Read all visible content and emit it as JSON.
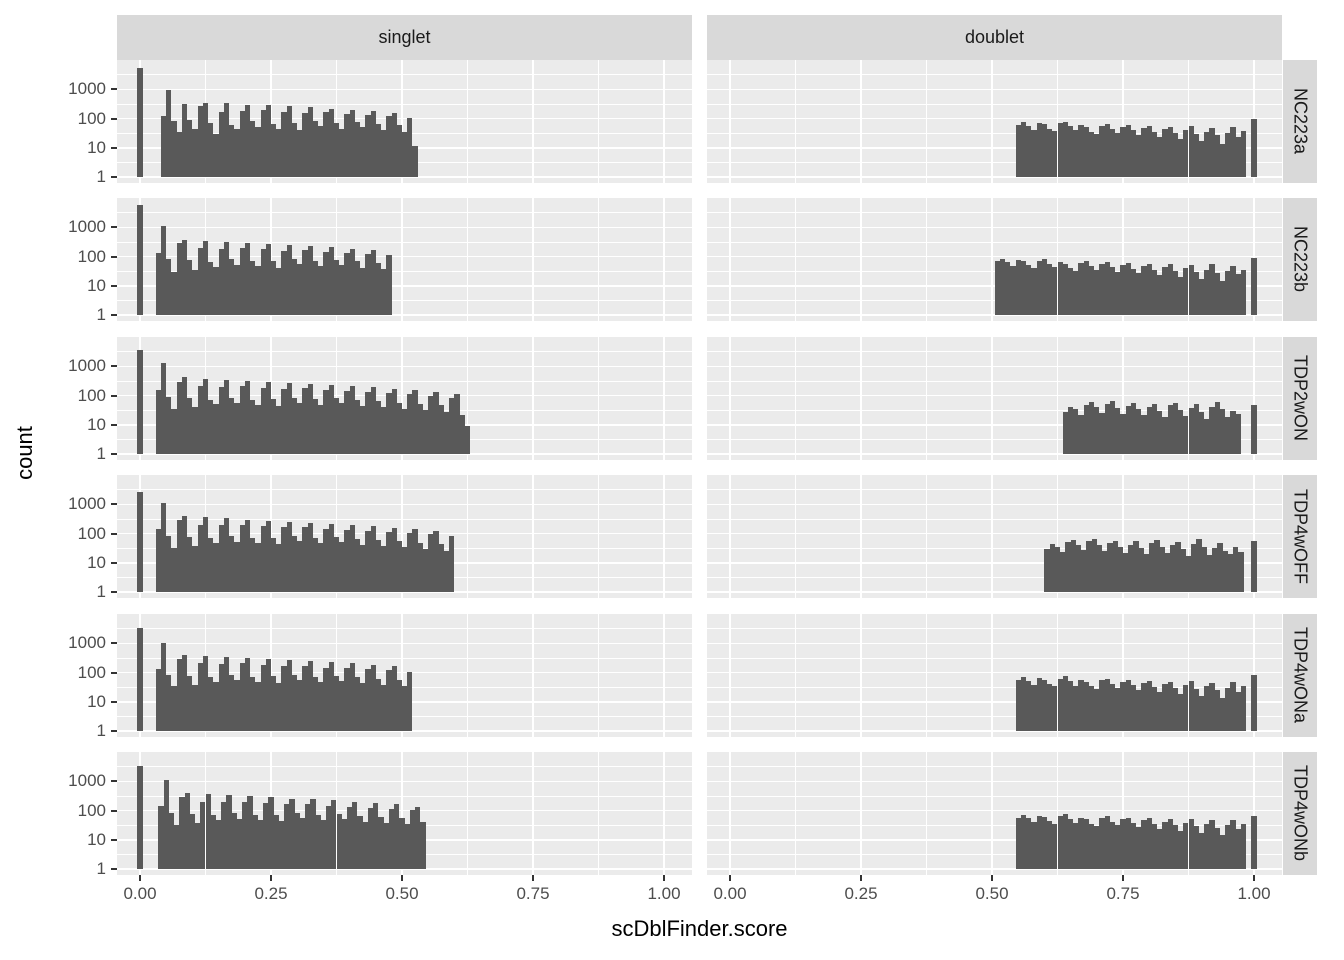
{
  "chart_data": {
    "type": "bar",
    "subtype": "faceted-histogram-log-y",
    "title": "",
    "xlabel": "scDblFinder.score",
    "ylabel": "count",
    "facet_cols": [
      "singlet",
      "doublet"
    ],
    "facet_rows": [
      "NC223a",
      "NC223b",
      "TDP2wON",
      "TDP4wOFF",
      "TDP4wONa",
      "TDP4wONb"
    ],
    "x_ticks": {
      "values": [
        0,
        0.25,
        0.5,
        0.75,
        1.0
      ],
      "labels": [
        "0.00",
        "0.25",
        "0.50",
        "0.75",
        "1.00"
      ]
    },
    "y_ticks": {
      "log10_values": [
        3,
        2,
        1,
        0
      ],
      "labels": [
        "1000",
        "100",
        "10",
        "1"
      ]
    },
    "y_scale": "log10",
    "y_axis_log_range": [
      -0.2,
      4.0
    ],
    "grid": {
      "major_log10": [
        0,
        1,
        2,
        3
      ],
      "minor_log10": [
        0.5,
        1.5,
        2.5,
        3.5
      ],
      "major_x": [
        0,
        0.25,
        0.5,
        0.75,
        1.0
      ],
      "minor_x": [
        0.125,
        0.375,
        0.625,
        0.875
      ]
    },
    "binwidth": 0.01,
    "panels": [
      {
        "row": "NC223a",
        "col": "singlet",
        "x0": 0.04,
        "spikes": [
          {
            "x": 0.0,
            "count": 5500
          }
        ],
        "counts": [
          120,
          950,
          80,
          35,
          310,
          90,
          45,
          260,
          350,
          70,
          30,
          170,
          330,
          60,
          45,
          180,
          300,
          80,
          50,
          200,
          280,
          65,
          45,
          170,
          260,
          70,
          40,
          155,
          240,
          80,
          55,
          165,
          220,
          70,
          45,
          140,
          200,
          75,
          50,
          130,
          180,
          65,
          40,
          120,
          160,
          60,
          35,
          105,
          12
        ]
      },
      {
        "row": "NC223a",
        "col": "doublet",
        "x0": 0.545,
        "spikes": [
          {
            "x": 1.0,
            "count": 100
          }
        ],
        "counts": [
          62,
          75,
          58,
          42,
          70,
          64,
          45,
          38,
          68,
          78,
          55,
          40,
          60,
          52,
          36,
          30,
          58,
          66,
          44,
          32,
          52,
          60,
          40,
          28,
          48,
          56,
          36,
          24,
          44,
          52,
          32,
          20,
          40,
          56,
          30,
          17,
          36,
          48,
          27,
          14,
          32,
          52,
          24,
          38
        ]
      },
      {
        "row": "NC223b",
        "col": "singlet",
        "x0": 0.03,
        "spikes": [
          {
            "x": 0.0,
            "count": 6000
          }
        ],
        "counts": [
          130,
          1100,
          85,
          30,
          280,
          380,
          75,
          35,
          190,
          340,
          65,
          45,
          185,
          310,
          80,
          50,
          200,
          290,
          68,
          46,
          175,
          265,
          72,
          42,
          160,
          245,
          82,
          56,
          168,
          225,
          72,
          46,
          145,
          205,
          78,
          52,
          135,
          185,
          68,
          42,
          125,
          165,
          62,
          38,
          110
        ]
      },
      {
        "row": "NC223b",
        "col": "doublet",
        "x0": 0.505,
        "spikes": [
          {
            "x": 1.0,
            "count": 90
          }
        ],
        "counts": [
          70,
          85,
          64,
          46,
          76,
          68,
          50,
          40,
          72,
          82,
          58,
          44,
          64,
          56,
          40,
          32,
          62,
          70,
          48,
          35,
          56,
          64,
          43,
          30,
          52,
          60,
          39,
          27,
          48,
          56,
          35,
          24,
          44,
          58,
          33,
          20,
          40,
          52,
          30,
          17,
          36,
          55,
          27,
          15,
          33,
          48,
          25,
          35
        ]
      },
      {
        "row": "TDP2wON",
        "col": "singlet",
        "x0": 0.03,
        "spikes": [
          {
            "x": 0.0,
            "count": 3500
          }
        ],
        "counts": [
          150,
          1250,
          90,
          35,
          300,
          420,
          80,
          40,
          210,
          380,
          70,
          50,
          200,
          350,
          85,
          55,
          210,
          320,
          72,
          48,
          185,
          290,
          75,
          45,
          170,
          270,
          85,
          58,
          175,
          250,
          74,
          48,
          150,
          230,
          80,
          54,
          140,
          210,
          70,
          44,
          130,
          190,
          64,
          40,
          120,
          170,
          58,
          36,
          110,
          150,
          52,
          32,
          100,
          130,
          46,
          28,
          85,
          110,
          22,
          9
        ]
      },
      {
        "row": "TDP2wON",
        "col": "doublet",
        "x0": 0.635,
        "spikes": [
          {
            "x": 1.0,
            "count": 46
          }
        ],
        "counts": [
          28,
          42,
          35,
          22,
          48,
          60,
          40,
          26,
          52,
          64,
          38,
          24,
          44,
          56,
          34,
          21,
          40,
          52,
          30,
          19,
          46,
          58,
          33,
          20,
          38,
          50,
          28,
          16,
          42,
          62,
          35,
          18,
          30,
          24
        ]
      },
      {
        "row": "TDP4wOFF",
        "col": "singlet",
        "x0": 0.03,
        "spikes": [
          {
            "x": 0.0,
            "count": 2600
          }
        ],
        "counts": [
          140,
          1150,
          85,
          32,
          280,
          400,
          75,
          38,
          200,
          360,
          68,
          48,
          190,
          330,
          80,
          52,
          200,
          300,
          70,
          46,
          178,
          275,
          72,
          43,
          162,
          255,
          80,
          55,
          168,
          238,
          70,
          46,
          144,
          220,
          76,
          51,
          134,
          200,
          67,
          42,
          124,
          180,
          61,
          38,
          114,
          160,
          55,
          34,
          104,
          140,
          49,
          30,
          95,
          120,
          43,
          26,
          80
        ]
      },
      {
        "row": "TDP4wOFF",
        "col": "doublet",
        "x0": 0.6,
        "spikes": [
          {
            "x": 1.0,
            "count": 55
          }
        ],
        "counts": [
          30,
          44,
          36,
          24,
          50,
          62,
          42,
          27,
          54,
          66,
          40,
          25,
          46,
          58,
          35,
          22,
          42,
          54,
          31,
          20,
          48,
          60,
          34,
          21,
          40,
          52,
          29,
          17,
          44,
          64,
          36,
          19,
          32,
          46,
          26,
          20,
          34,
          24
        ]
      },
      {
        "row": "TDP4wONa",
        "col": "singlet",
        "x0": 0.03,
        "spikes": [
          {
            "x": 0.0,
            "count": 3200
          }
        ],
        "counts": [
          135,
          1050,
          82,
          34,
          290,
          410,
          78,
          38,
          205,
          370,
          70,
          48,
          195,
          340,
          82,
          54,
          205,
          310,
          72,
          48,
          182,
          285,
          74,
          44,
          166,
          262,
          82,
          56,
          172,
          245,
          72,
          47,
          148,
          225,
          78,
          52,
          138,
          205,
          68,
          43,
          128,
          185,
          62,
          39,
          118,
          165,
          56,
          35,
          108
        ]
      },
      {
        "row": "TDP4wONa",
        "col": "doublet",
        "x0": 0.545,
        "spikes": [
          {
            "x": 1.0,
            "count": 80
          }
        ],
        "counts": [
          55,
          70,
          52,
          38,
          64,
          58,
          42,
          34,
          62,
          74,
          50,
          36,
          56,
          48,
          34,
          28,
          54,
          62,
          40,
          30,
          48,
          56,
          37,
          26,
          45,
          53,
          33,
          22,
          41,
          49,
          30,
          19,
          38,
          52,
          28,
          16,
          34,
          45,
          25,
          14,
          30,
          48,
          22,
          34
        ]
      },
      {
        "row": "TDP4wONb",
        "col": "singlet",
        "x0": 0.035,
        "spikes": [
          {
            "x": 0.0,
            "count": 3300
          }
        ],
        "counts": [
          145,
          1100,
          84,
          33,
          285,
          405,
          76,
          37,
          202,
          365,
          69,
          47,
          192,
          335,
          81,
          53,
          202,
          305,
          71,
          47,
          180,
          280,
          73,
          43,
          164,
          258,
          81,
          55,
          170,
          242,
          71,
          46,
          146,
          222,
          77,
          51,
          136,
          202,
          67,
          42,
          126,
          182,
          61,
          38,
          116,
          162,
          55,
          34,
          106,
          135,
          40
        ]
      },
      {
        "row": "TDP4wONb",
        "col": "doublet",
        "x0": 0.545,
        "spikes": [
          {
            "x": 1.0,
            "count": 67
          }
        ],
        "counts": [
          58,
          72,
          54,
          40,
          66,
          60,
          44,
          35,
          64,
          76,
          52,
          38,
          58,
          50,
          36,
          29,
          56,
          64,
          42,
          31,
          50,
          58,
          38,
          27,
          46,
          54,
          34,
          23,
          42,
          50,
          31,
          20,
          39,
          53,
          29,
          17,
          35,
          46,
          26,
          15,
          31,
          49,
          23,
          35
        ]
      }
    ]
  },
  "colors": {
    "bar_fill": "#595959",
    "panel_bg": "#ebebeb",
    "strip_bg": "#d9d9d9",
    "grid": "#ffffff",
    "tick_text": "#4d4d4d",
    "title_text": "#000000"
  }
}
